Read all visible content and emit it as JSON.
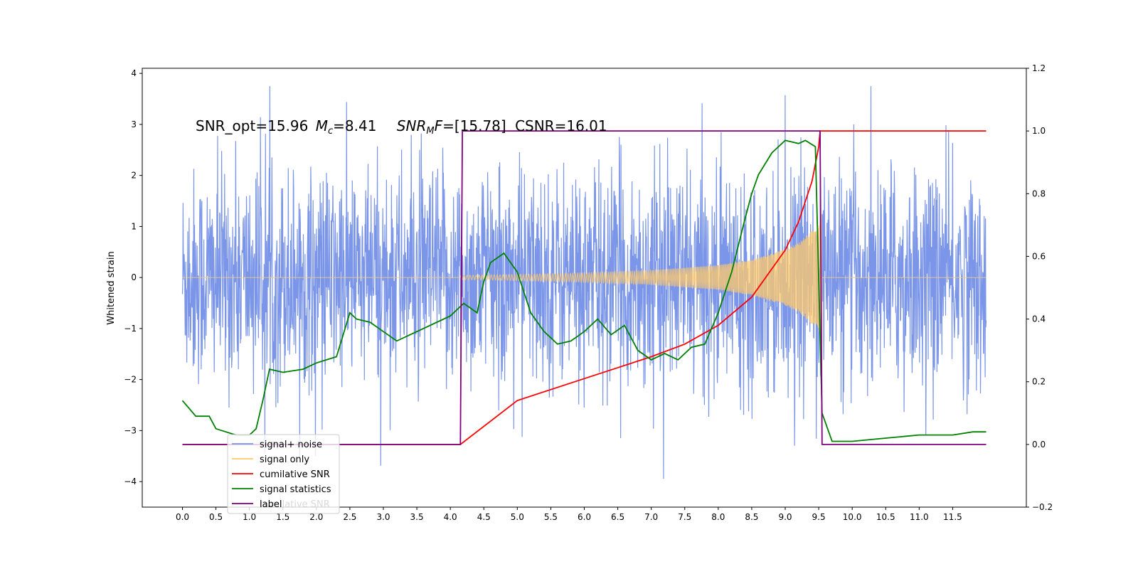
{
  "chart_data": {
    "type": "line",
    "title": "",
    "annotation": {
      "snr_opt": "SNR_opt=15.96",
      "mc": "=8.41",
      "snr_mf": "=[15.78]",
      "csnr": "CSNR=16.01"
    },
    "ylabel": "Whitened strain",
    "xlabel": "",
    "xlim": [
      -0.6,
      12.6
    ],
    "ylim": [
      -4.5,
      4.1
    ],
    "y2lim": [
      -0.2,
      1.2
    ],
    "xticks": [
      "0.0",
      "0.5",
      "1.0",
      "1.5",
      "2.0",
      "2.5",
      "3.0",
      "3.5",
      "4.0",
      "4.5",
      "5.0",
      "5.5",
      "6.0",
      "6.5",
      "7.0",
      "7.5",
      "8.0",
      "8.5",
      "9.0",
      "9.5",
      "10.0",
      "10.5",
      "11.0",
      "11.5"
    ],
    "yticks": [
      "4",
      "3",
      "2",
      "1",
      "0",
      "−1",
      "−2",
      "−3",
      "−4"
    ],
    "y2ticks": [
      "1.2",
      "1.0",
      "0.8",
      "0.6",
      "0.4",
      "0.2",
      "0.0",
      "−0.2"
    ],
    "legend": {
      "position": "lower-left",
      "entries": [
        {
          "label": "signal+ noise",
          "color": "#7b96e8"
        },
        {
          "label": "signal only",
          "color": "#ffc96b"
        },
        {
          "label": "cumilative SNR",
          "color": "#ff0000"
        },
        {
          "label": "signal statistics",
          "color": "#008000"
        },
        {
          "label": "label",
          "color": "#800080"
        }
      ],
      "hidden_entry": "cumilative SNR"
    },
    "series": [
      {
        "name": "signal+ noise",
        "color": "#7b96e8",
        "axis": "left",
        "description": "whitened noise, approx. range -2.5 to 2.5 with spikes to ±3.7",
        "x_range": [
          0.0,
          12.0
        ]
      },
      {
        "name": "signal only",
        "color": "#ffc96b",
        "axis": "left",
        "envelope": {
          "t": [
            4.15,
            5.0,
            6.0,
            7.0,
            8.0,
            8.5,
            9.0,
            9.2,
            9.4,
            9.5,
            9.55
          ],
          "amp": [
            0.04,
            0.06,
            0.09,
            0.14,
            0.24,
            0.35,
            0.55,
            0.68,
            0.92,
            1.1,
            1.3
          ]
        },
        "x_range": [
          0.0,
          12.0
        ]
      },
      {
        "name": "cumilative SNR",
        "color": "#ff0000",
        "axis": "right",
        "x": [
          0.0,
          4.15,
          5.0,
          6.0,
          7.0,
          7.5,
          8.0,
          8.5,
          9.0,
          9.2,
          9.4,
          9.5,
          9.52,
          12.0
        ],
        "y": [
          0.0,
          0.0,
          0.14,
          0.21,
          0.28,
          0.32,
          0.38,
          0.47,
          0.62,
          0.71,
          0.84,
          0.95,
          1.0,
          1.0
        ]
      },
      {
        "name": "signal statistics",
        "color": "#008000",
        "axis": "right",
        "x": [
          0.0,
          0.2,
          0.4,
          0.5,
          0.8,
          1.0,
          1.1,
          1.2,
          1.3,
          1.5,
          1.8,
          2.0,
          2.3,
          2.5,
          2.6,
          2.8,
          3.0,
          3.2,
          3.4,
          3.6,
          3.8,
          4.0,
          4.2,
          4.4,
          4.5,
          4.6,
          4.8,
          5.0,
          5.2,
          5.4,
          5.6,
          5.8,
          6.0,
          6.2,
          6.4,
          6.6,
          6.8,
          7.0,
          7.2,
          7.4,
          7.6,
          7.8,
          8.0,
          8.2,
          8.4,
          8.5,
          8.6,
          8.8,
          9.0,
          9.2,
          9.3,
          9.45,
          9.55,
          9.7,
          10.0,
          10.5,
          11.0,
          11.5,
          11.8,
          12.0
        ],
        "y": [
          0.14,
          0.09,
          0.09,
          0.05,
          0.03,
          0.03,
          0.05,
          0.14,
          0.24,
          0.23,
          0.24,
          0.26,
          0.28,
          0.42,
          0.4,
          0.39,
          0.36,
          0.33,
          0.35,
          0.37,
          0.39,
          0.41,
          0.45,
          0.42,
          0.52,
          0.58,
          0.61,
          0.55,
          0.42,
          0.36,
          0.32,
          0.33,
          0.36,
          0.4,
          0.35,
          0.38,
          0.3,
          0.27,
          0.29,
          0.27,
          0.31,
          0.32,
          0.42,
          0.55,
          0.72,
          0.8,
          0.86,
          0.93,
          0.97,
          0.96,
          0.97,
          0.95,
          0.1,
          0.01,
          0.01,
          0.02,
          0.03,
          0.03,
          0.04,
          0.04
        ]
      },
      {
        "name": "label",
        "color": "#800080",
        "axis": "right",
        "x": [
          0.0,
          4.15,
          4.18,
          9.52,
          9.55,
          12.0
        ],
        "y": [
          0.0,
          0.0,
          1.0,
          1.0,
          0.0,
          0.0
        ]
      }
    ]
  }
}
